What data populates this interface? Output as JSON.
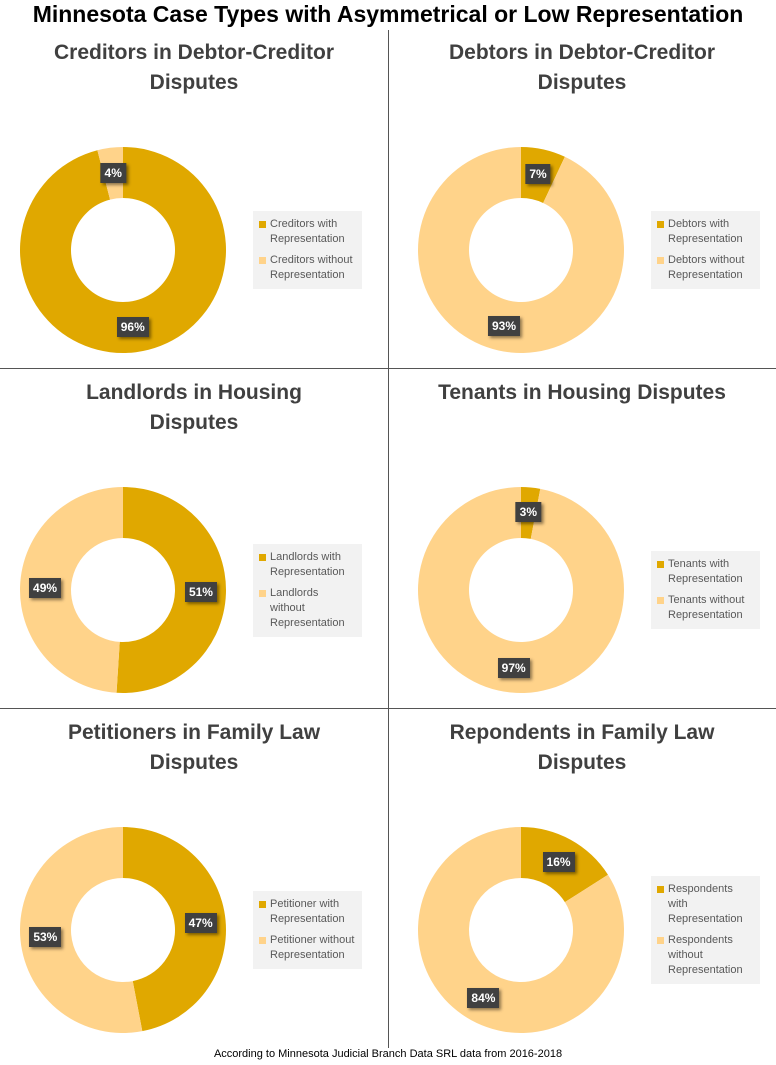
{
  "title": "Minnesota Case Types with Asymmetrical or Low Representation",
  "footer": "According to Minnesota Judicial Branch Data SRL data from 2016-2018",
  "colors": {
    "with": "#E0A800",
    "without": "#FFD38A"
  },
  "chart_data": [
    {
      "type": "pie",
      "title": [
        "Creditors in Debtor-Creditor",
        "Disputes"
      ],
      "categories": [
        "Creditors with Representation",
        "Creditors without Representation"
      ],
      "values": [
        96,
        4
      ],
      "labels": [
        "96%",
        "4%"
      ]
    },
    {
      "type": "pie",
      "title": [
        "Debtors in Debtor-Creditor",
        "Disputes"
      ],
      "categories": [
        "Debtors with Representation",
        "Debtors without Representation"
      ],
      "values": [
        7,
        93
      ],
      "labels": [
        "7%",
        "93%"
      ]
    },
    {
      "type": "pie",
      "title": [
        "Landlords in Housing",
        "Disputes"
      ],
      "categories": [
        "Landlords with Representation",
        "Landlords without Representation"
      ],
      "values": [
        51,
        49
      ],
      "labels": [
        "51%",
        "49%"
      ]
    },
    {
      "type": "pie",
      "title": [
        "Tenants in Housing Disputes"
      ],
      "categories": [
        "Tenants with Representation",
        "Tenants without Representation"
      ],
      "values": [
        3,
        97
      ],
      "labels": [
        "3%",
        "97%"
      ]
    },
    {
      "type": "pie",
      "title": [
        "Petitioners in Family Law",
        "Disputes"
      ],
      "categories": [
        "Petitioner with Representation",
        "Petitioner without Representation"
      ],
      "values": [
        47,
        53
      ],
      "labels": [
        "47%",
        "53%"
      ]
    },
    {
      "type": "pie",
      "title": [
        "Repondents in Family Law",
        "Disputes"
      ],
      "categories": [
        "Respondents with Representation",
        "Respondents without Representation"
      ],
      "values": [
        16,
        84
      ],
      "labels": [
        "16%",
        "84%"
      ]
    }
  ]
}
